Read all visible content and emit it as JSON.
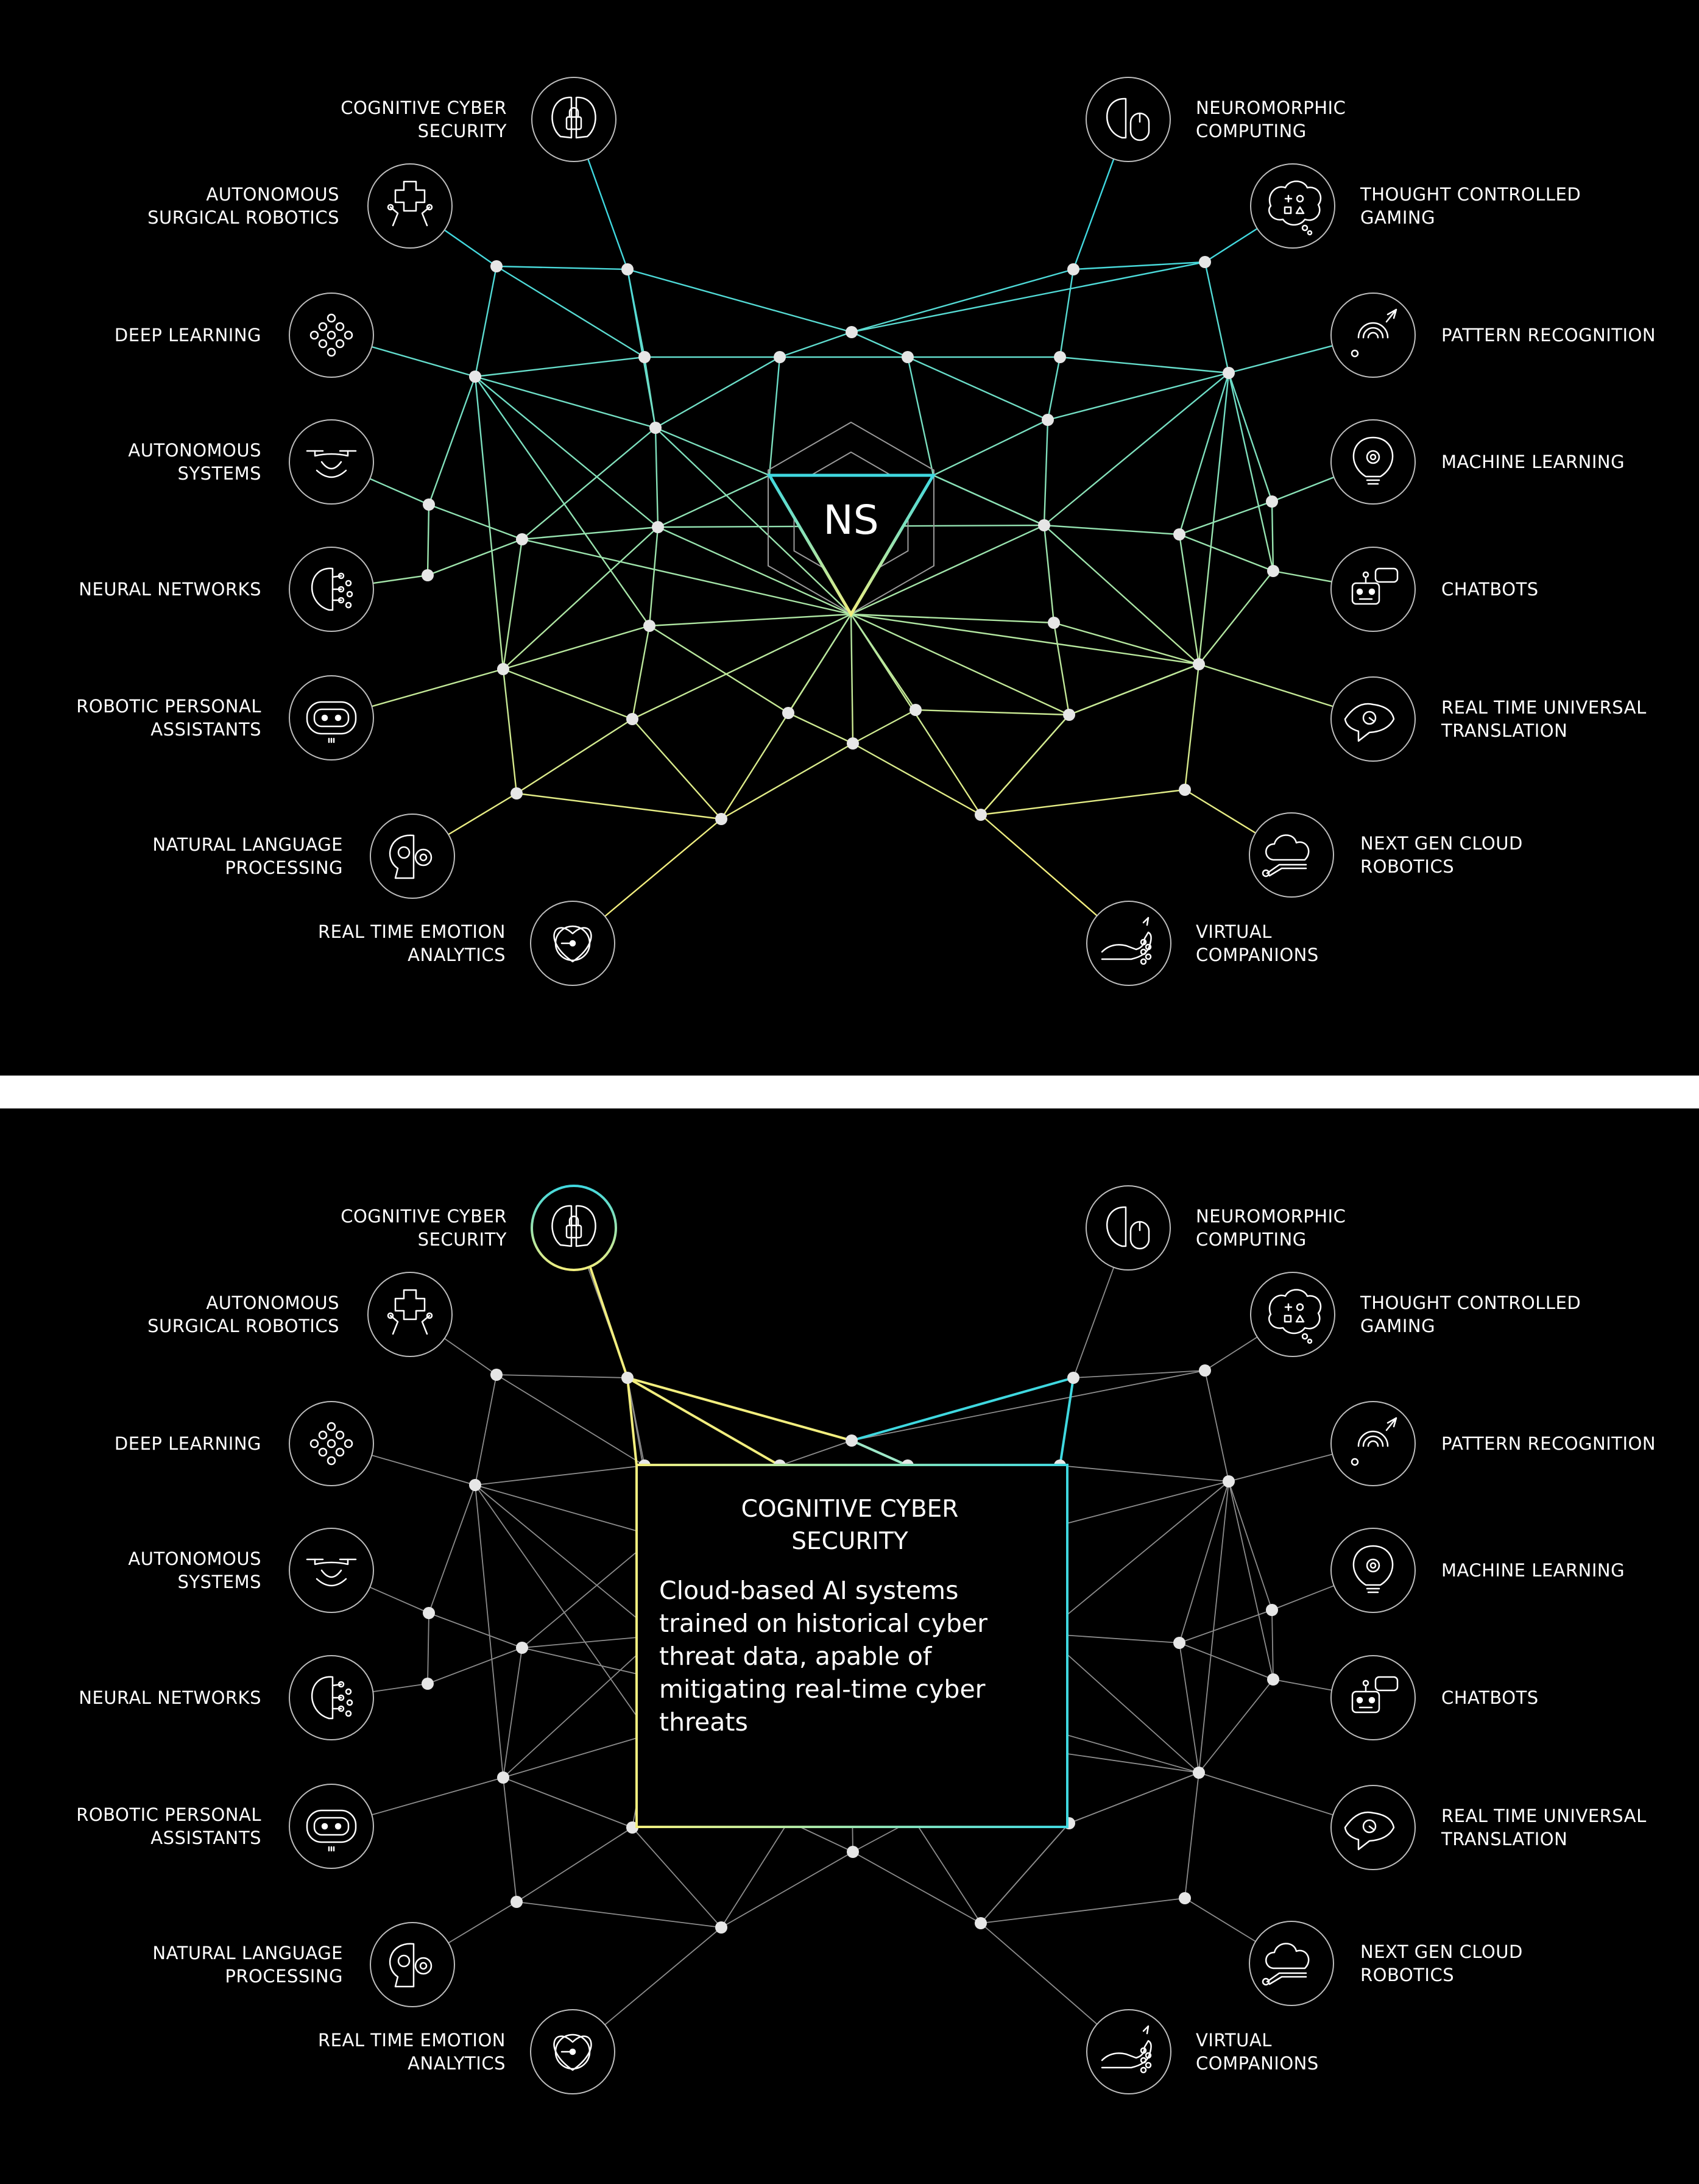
{
  "hub_label": "NS",
  "colors": {
    "background": "#000000",
    "separator": "#ffffff",
    "accent_cyan": "#3fd8e0",
    "accent_yellow": "#f2ee7e",
    "node_fill": "#e6e6e6",
    "muted_line": "#8c8c8c",
    "text": "#ffffff"
  },
  "topics": [
    {
      "id": "cognitive-cyber-security",
      "lines": [
        "COGNITIVE CYBER",
        "SECURITY"
      ],
      "icon": "brain-lock-icon"
    },
    {
      "id": "autonomous-surgical-robotics",
      "lines": [
        "AUTONOMOUS",
        "SURGICAL ROBOTICS"
      ],
      "icon": "robot-arm-cross-icon"
    },
    {
      "id": "deep-learning",
      "lines": [
        "DEEP LEARNING"
      ],
      "icon": "dot-cluster-icon"
    },
    {
      "id": "autonomous-systems",
      "lines": [
        "AUTONOMOUS",
        "SYSTEMS"
      ],
      "icon": "drone-icon"
    },
    {
      "id": "neural-networks",
      "lines": [
        "NEURAL NETWORKS"
      ],
      "icon": "brain-network-icon"
    },
    {
      "id": "robotic-personal-assistants",
      "lines": [
        "ROBOTIC PERSONAL",
        "ASSISTANTS"
      ],
      "icon": "robot-face-icon"
    },
    {
      "id": "natural-language-processing",
      "lines": [
        "NATURAL LANGUAGE",
        "PROCESSING"
      ],
      "icon": "head-gears-icon"
    },
    {
      "id": "real-time-emotion-analytics",
      "lines": [
        "REAL TIME EMOTION",
        "ANALYTICS"
      ],
      "icon": "heart-gauge-icon"
    },
    {
      "id": "neuromorphic-computing",
      "lines": [
        "NEUROMORPHIC",
        "COMPUTING"
      ],
      "icon": "brain-mouse-icon"
    },
    {
      "id": "thought-controlled-gaming",
      "lines": [
        "THOUGHT CONTROLLED",
        "GAMING"
      ],
      "icon": "thought-bubble-icon"
    },
    {
      "id": "pattern-recognition",
      "lines": [
        "PATTERN RECOGNITION"
      ],
      "icon": "fingerprint-icon"
    },
    {
      "id": "machine-learning",
      "lines": [
        "MACHINE LEARNING"
      ],
      "icon": "lightbulb-gear-icon"
    },
    {
      "id": "chatbots",
      "lines": [
        "CHATBOTS"
      ],
      "icon": "chatbot-icon"
    },
    {
      "id": "real-time-universal-translation",
      "lines": [
        "REAL TIME UNIVERSAL",
        "TRANSLATION"
      ],
      "icon": "speech-bubbles-icon"
    },
    {
      "id": "next-gen-cloud-robotics",
      "lines": [
        "NEXT GEN CLOUD",
        "ROBOTICS"
      ],
      "icon": "cloud-arm-icon"
    },
    {
      "id": "virtual-companions",
      "lines": [
        "VIRTUAL",
        "COMPANIONS"
      ],
      "icon": "hand-sparkle-icon"
    }
  ],
  "selected": {
    "topic_id": "cognitive-cyber-security",
    "title_lines": [
      "COGNITIVE CYBER",
      "SECURITY"
    ],
    "description_lines": [
      "Cloud-based AI systems",
      "trained on historical cyber",
      "threat data, apable of",
      "mitigating real-time cyber",
      "threats"
    ]
  }
}
